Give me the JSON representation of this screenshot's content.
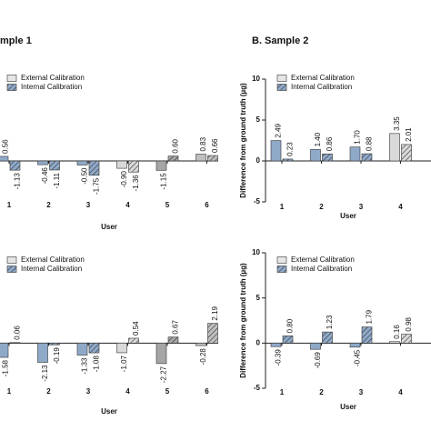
{
  "charts": [
    {
      "type": "bar",
      "title": "mple 1",
      "xlabel": "User",
      "categories": [
        "1",
        "2",
        "3",
        "4",
        "5",
        "6"
      ],
      "category_colors": [
        "#8fa9c9",
        "#8fa9c9",
        "#8fa9c9",
        "#d9d9d9",
        "#a6a6a6",
        "#bfbfbf"
      ],
      "ylim": [
        -5,
        10
      ],
      "series": [
        {
          "name": "External Calibration",
          "values": [
            0.56,
            -0.46,
            -0.5,
            -0.9,
            -1.15,
            0.83
          ],
          "value_labels": [
            "0.56",
            "-0.46",
            "-0.50",
            "-0.90",
            "-1.15",
            "0.83"
          ]
        },
        {
          "name": "Internal Calibration",
          "values": [
            -1.13,
            -1.11,
            -1.75,
            -1.36,
            0.6,
            0.66
          ],
          "value_labels": [
            "-1.13",
            "-1.11",
            "-1.75",
            "-1.36",
            "0.60",
            "0.66"
          ]
        }
      ]
    },
    {
      "type": "bar",
      "title": "B. Sample 2",
      "xlabel": "User",
      "ylabel": "Difference from ground truth (µg)",
      "categories": [
        "1",
        "2",
        "3",
        "4"
      ],
      "category_colors": [
        "#8fa9c9",
        "#8fa9c9",
        "#8fa9c9",
        "#d9d9d9"
      ],
      "ylim": [
        -5,
        10
      ],
      "yticks": [
        -5,
        0,
        5,
        10
      ],
      "series": [
        {
          "name": "External Calibration",
          "values": [
            2.49,
            1.4,
            1.7,
            3.35
          ],
          "value_labels": [
            "2.49",
            "1.40",
            "1.70",
            "3.35"
          ]
        },
        {
          "name": "Internal Calibration",
          "values": [
            0.23,
            0.86,
            0.88,
            2.01
          ],
          "value_labels": [
            "0.23",
            "0.86",
            "0.88",
            "2.01"
          ]
        }
      ]
    },
    {
      "type": "bar",
      "xlabel": "User",
      "categories": [
        "1",
        "2",
        "3",
        "4",
        "5",
        "6"
      ],
      "category_colors": [
        "#8fa9c9",
        "#8fa9c9",
        "#8fa9c9",
        "#d9d9d9",
        "#a6a6a6",
        "#bfbfbf"
      ],
      "ylim": [
        -5,
        10
      ],
      "series": [
        {
          "name": "External Calibration",
          "values": [
            -1.58,
            -2.13,
            -1.33,
            -1.07,
            -2.27,
            -0.28
          ],
          "value_labels": [
            "-1.58",
            "-2.13",
            "-1.33",
            "-1.07",
            "-2.27",
            "-0.28"
          ]
        },
        {
          "name": "Internal Calibration",
          "values": [
            0.06,
            -0.19,
            -1.08,
            0.54,
            0.67,
            2.19
          ],
          "value_labels": [
            "0.06",
            "-0.19",
            "-1.08",
            "0.54",
            "0.67",
            "2.19"
          ]
        }
      ]
    },
    {
      "type": "bar",
      "xlabel": "User",
      "ylabel": "Difference from ground truth (µg)",
      "categories": [
        "1",
        "2",
        "3",
        "4"
      ],
      "category_colors": [
        "#8fa9c9",
        "#8fa9c9",
        "#8fa9c9",
        "#d9d9d9"
      ],
      "ylim": [
        -5,
        10
      ],
      "yticks": [
        -5,
        0,
        5,
        10
      ],
      "series": [
        {
          "name": "External Calibration",
          "values": [
            -0.39,
            -0.69,
            -0.45,
            0.16
          ],
          "value_labels": [
            "-0.39",
            "-0.69",
            "-0.45",
            "0.16"
          ]
        },
        {
          "name": "Internal Calibration",
          "values": [
            0.8,
            1.23,
            1.79,
            0.98
          ],
          "value_labels": [
            "0.80",
            "1.23",
            "1.79",
            "0.98"
          ]
        }
      ]
    }
  ]
}
